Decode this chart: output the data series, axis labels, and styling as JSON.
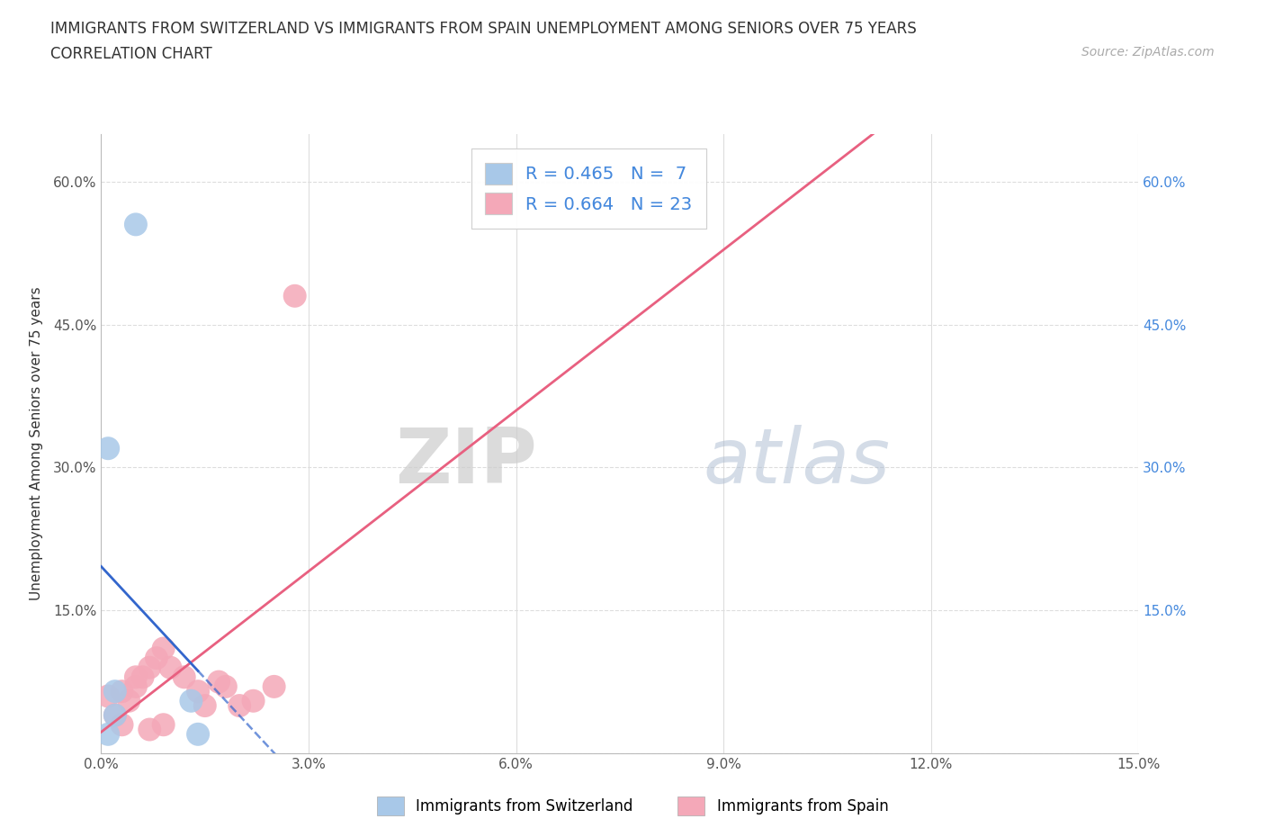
{
  "title_line1": "IMMIGRANTS FROM SWITZERLAND VS IMMIGRANTS FROM SPAIN UNEMPLOYMENT AMONG SENIORS OVER 75 YEARS",
  "title_line2": "CORRELATION CHART",
  "source": "Source: ZipAtlas.com",
  "ylabel": "Unemployment Among Seniors over 75 years",
  "xlim": [
    0.0,
    0.15
  ],
  "ylim": [
    0.0,
    0.65
  ],
  "xticks": [
    0.0,
    0.03,
    0.06,
    0.09,
    0.12,
    0.15
  ],
  "yticks": [
    0.0,
    0.15,
    0.3,
    0.45,
    0.6
  ],
  "xticklabels": [
    "0.0%",
    "3.0%",
    "6.0%",
    "9.0%",
    "12.0%",
    "15.0%"
  ],
  "yticklabels": [
    "",
    "15.0%",
    "30.0%",
    "45.0%",
    "60.0%"
  ],
  "right_yticklabels": [
    "15.0%",
    "30.0%",
    "45.0%",
    "60.0%"
  ],
  "switzerland_x": [
    0.005,
    0.001,
    0.013,
    0.002,
    0.002,
    0.001,
    0.014
  ],
  "switzerland_y": [
    0.555,
    0.32,
    0.055,
    0.065,
    0.04,
    0.02,
    0.02
  ],
  "spain_x": [
    0.001,
    0.002,
    0.003,
    0.004,
    0.005,
    0.006,
    0.007,
    0.008,
    0.009,
    0.01,
    0.012,
    0.014,
    0.015,
    0.017,
    0.018,
    0.02,
    0.022,
    0.025,
    0.028,
    0.003,
    0.005,
    0.007,
    0.009
  ],
  "spain_y": [
    0.06,
    0.04,
    0.065,
    0.055,
    0.07,
    0.08,
    0.09,
    0.1,
    0.11,
    0.09,
    0.08,
    0.065,
    0.05,
    0.075,
    0.07,
    0.05,
    0.055,
    0.07,
    0.48,
    0.03,
    0.08,
    0.025,
    0.03
  ],
  "switzerland_color": "#a8c8e8",
  "spain_color": "#f4a8b8",
  "switzerland_line_color": "#3366cc",
  "spain_line_color": "#e86080",
  "switzerland_R": 0.465,
  "switzerland_N": 7,
  "spain_R": 0.664,
  "spain_N": 23,
  "legend_R_color": "#4488dd",
  "watermark_zip": "ZIP",
  "watermark_atlas": "atlas",
  "background_color": "#ffffff",
  "grid_color": "#dddddd"
}
